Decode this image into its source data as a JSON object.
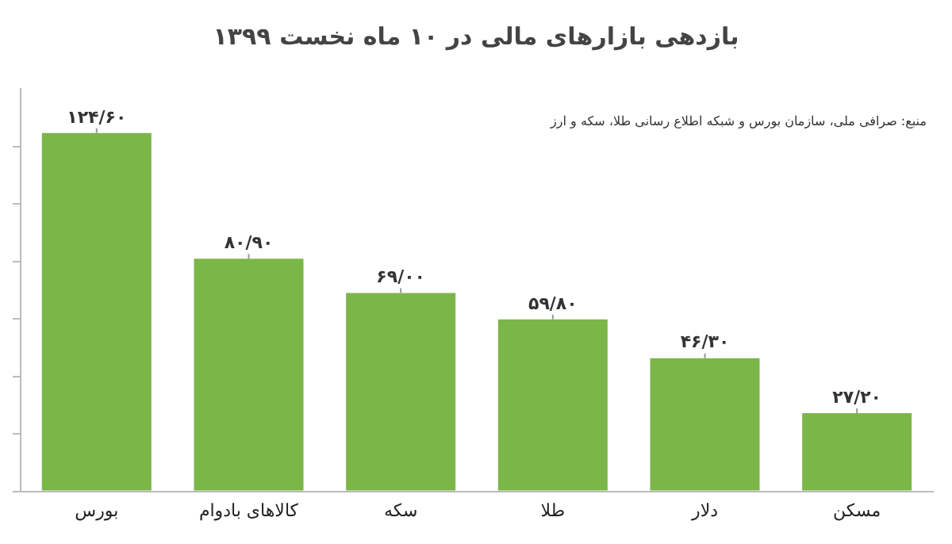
{
  "chart_data": {
    "type": "bar",
    "title": "بازدهی بازارهای مالی در ۱۰ ماه نخست ۱۳۹۹",
    "categories": [
      "بورس",
      "کالاهای بادوام",
      "سکه",
      "طلا",
      "دلار",
      "مسکن"
    ],
    "values": [
      124.6,
      80.9,
      69.0,
      59.8,
      46.3,
      27.2
    ],
    "value_labels": [
      "۱۲۴/۶۰",
      "۸۰/۹۰",
      "۶۹/۰۰",
      "۵۹/۸۰",
      "۴۶/۳۰",
      "۲۷/۲۰"
    ],
    "color": "#7ab648",
    "ylim": [
      0,
      140
    ],
    "yticks": [
      {
        "value": 0,
        "label": null
      },
      {
        "value": 20,
        "label": null
      },
      {
        "value": 40,
        "label": null
      },
      {
        "value": 60,
        "label": null
      },
      {
        "value": 80,
        "label": null
      },
      {
        "value": 100,
        "label": null
      },
      {
        "value": 120,
        "label": null
      }
    ],
    "annotations": [
      "منبع: صرافی ملی، سازمان بورس و شبکه اطلاع رسانی طلا، سکه و ارز"
    ],
    "grid": false,
    "legend": false
  }
}
